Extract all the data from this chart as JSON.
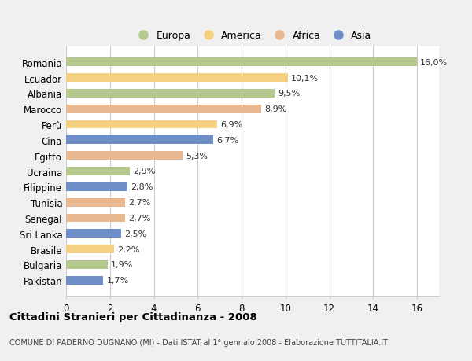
{
  "categories": [
    "Romania",
    "Ecuador",
    "Albania",
    "Marocco",
    "Perù",
    "Cina",
    "Egitto",
    "Ucraina",
    "Filippine",
    "Tunisia",
    "Senegal",
    "Sri Lanka",
    "Brasile",
    "Bulgaria",
    "Pakistan"
  ],
  "values": [
    16.0,
    10.1,
    9.5,
    8.9,
    6.9,
    6.7,
    5.3,
    2.9,
    2.8,
    2.7,
    2.7,
    2.5,
    2.2,
    1.9,
    1.7
  ],
  "continents": [
    "Europa",
    "America",
    "Europa",
    "Africa",
    "America",
    "Asia",
    "Africa",
    "Europa",
    "Asia",
    "Africa",
    "Africa",
    "Asia",
    "America",
    "Europa",
    "Asia"
  ],
  "colors": {
    "Europa": "#b5c98e",
    "America": "#f5d080",
    "Africa": "#e8b990",
    "Asia": "#6e8ec8"
  },
  "xlim": [
    0,
    17
  ],
  "xticks": [
    0,
    2,
    4,
    6,
    8,
    10,
    12,
    14,
    16
  ],
  "title": "Cittadini Stranieri per Cittadinanza - 2008",
  "subtitle": "COMUNE DI PADERNO DUGNANO (MI) - Dati ISTAT al 1° gennaio 2008 - Elaborazione TUTTITALIA.IT",
  "background_color": "#f0f0f0",
  "plot_background": "#ffffff",
  "grid_color": "#cccccc",
  "bar_height": 0.55,
  "label_fontsize": 8.0,
  "ytick_fontsize": 8.5,
  "xtick_fontsize": 8.5
}
